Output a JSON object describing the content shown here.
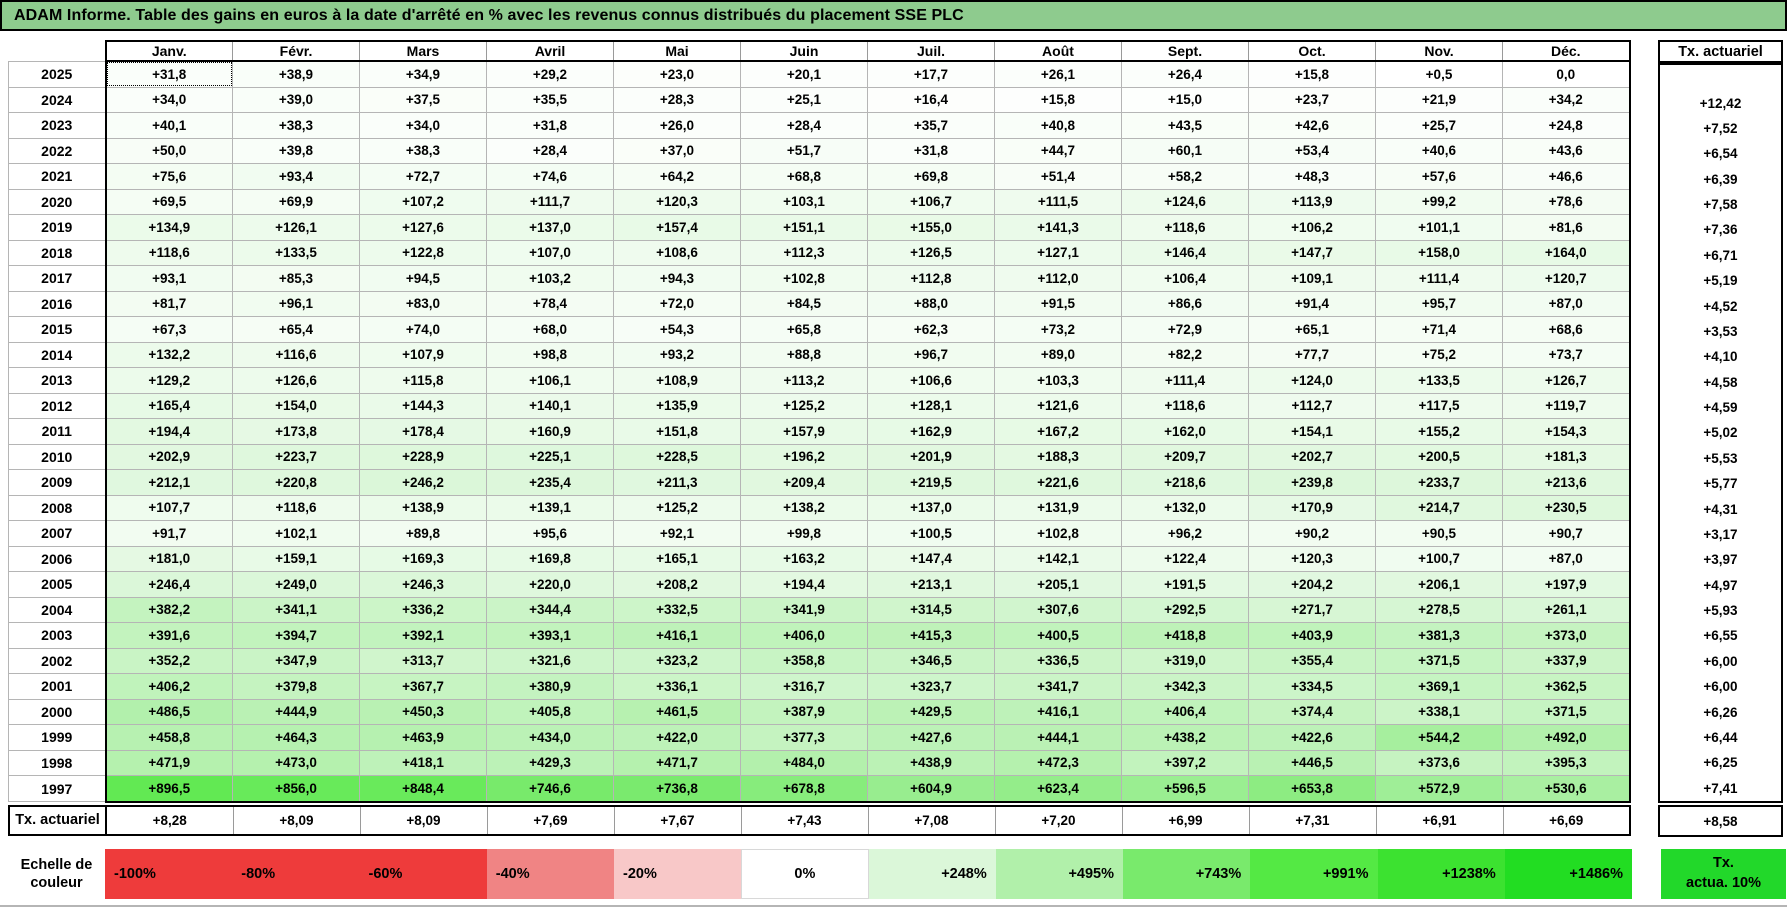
{
  "title": "ADAM Informe. Table des gains en euros à la date d'arrêté en % avec les revenus connus distribués du placement SSE PLC",
  "colors": {
    "title_bg": "#8ecb8e",
    "grid_line": "#b5b5b5",
    "thick_border": "#000000",
    "header_separator": "#9a9a9a"
  },
  "chart_data": {
    "type": "heatmap",
    "title": "ADAM Informe. Table des gains en euros à la date d'arrêté en % avec les revenus connus distribués du placement SSE PLC",
    "columns": [
      "Janv.",
      "Févr.",
      "Mars",
      "Avril",
      "Mai",
      "Juin",
      "Juil.",
      "Août",
      "Sept.",
      "Oct.",
      "Nov.",
      "Déc."
    ],
    "right_column_header": "Tx. actuariel",
    "selected_cell": {
      "year": "2025",
      "column": "Janv."
    },
    "rows": [
      {
        "year": "2025",
        "values": [
          "+31,8",
          "+38,9",
          "+34,9",
          "+29,2",
          "+23,0",
          "+20,1",
          "+17,7",
          "+26,1",
          "+26,4",
          "+15,8",
          "+0,5",
          "0,0"
        ],
        "tx": ""
      },
      {
        "year": "2024",
        "values": [
          "+34,0",
          "+39,0",
          "+37,5",
          "+35,5",
          "+28,3",
          "+25,1",
          "+16,4",
          "+15,8",
          "+15,0",
          "+23,7",
          "+21,9",
          "+34,2"
        ],
        "tx": "+12,42"
      },
      {
        "year": "2023",
        "values": [
          "+40,1",
          "+38,3",
          "+34,0",
          "+31,8",
          "+26,0",
          "+28,4",
          "+35,7",
          "+40,8",
          "+43,5",
          "+42,6",
          "+25,7",
          "+24,8"
        ],
        "tx": "+7,52"
      },
      {
        "year": "2022",
        "values": [
          "+50,0",
          "+39,8",
          "+38,3",
          "+28,4",
          "+37,0",
          "+51,7",
          "+31,8",
          "+44,7",
          "+60,1",
          "+53,4",
          "+40,6",
          "+43,6"
        ],
        "tx": "+6,54"
      },
      {
        "year": "2021",
        "values": [
          "+75,6",
          "+93,4",
          "+72,7",
          "+74,6",
          "+64,2",
          "+68,8",
          "+69,8",
          "+51,4",
          "+58,2",
          "+48,3",
          "+57,6",
          "+46,6"
        ],
        "tx": "+6,39"
      },
      {
        "year": "2020",
        "values": [
          "+69,5",
          "+69,9",
          "+107,2",
          "+111,7",
          "+120,3",
          "+103,1",
          "+106,7",
          "+111,5",
          "+124,6",
          "+113,9",
          "+99,2",
          "+78,6"
        ],
        "tx": "+7,58"
      },
      {
        "year": "2019",
        "values": [
          "+134,9",
          "+126,1",
          "+127,6",
          "+137,0",
          "+157,4",
          "+151,1",
          "+155,0",
          "+141,3",
          "+118,6",
          "+106,2",
          "+101,1",
          "+81,6"
        ],
        "tx": "+7,36"
      },
      {
        "year": "2018",
        "values": [
          "+118,6",
          "+133,5",
          "+122,8",
          "+107,0",
          "+108,6",
          "+112,3",
          "+126,5",
          "+127,1",
          "+146,4",
          "+147,7",
          "+158,0",
          "+164,0"
        ],
        "tx": "+6,71"
      },
      {
        "year": "2017",
        "values": [
          "+93,1",
          "+85,3",
          "+94,5",
          "+103,2",
          "+94,3",
          "+102,8",
          "+112,8",
          "+112,0",
          "+106,4",
          "+109,1",
          "+111,4",
          "+120,7"
        ],
        "tx": "+5,19"
      },
      {
        "year": "2016",
        "values": [
          "+81,7",
          "+96,1",
          "+83,0",
          "+78,4",
          "+72,0",
          "+84,5",
          "+88,0",
          "+91,5",
          "+86,6",
          "+91,4",
          "+95,7",
          "+87,0"
        ],
        "tx": "+4,52"
      },
      {
        "year": "2015",
        "values": [
          "+67,3",
          "+65,4",
          "+74,0",
          "+68,0",
          "+54,3",
          "+65,8",
          "+62,3",
          "+73,2",
          "+72,9",
          "+65,1",
          "+71,4",
          "+68,6"
        ],
        "tx": "+3,53"
      },
      {
        "year": "2014",
        "values": [
          "+132,2",
          "+116,6",
          "+107,9",
          "+98,8",
          "+93,2",
          "+88,8",
          "+96,7",
          "+89,0",
          "+82,2",
          "+77,7",
          "+75,2",
          "+73,7"
        ],
        "tx": "+4,10"
      },
      {
        "year": "2013",
        "values": [
          "+129,2",
          "+126,6",
          "+115,8",
          "+106,1",
          "+108,9",
          "+113,2",
          "+106,6",
          "+103,3",
          "+111,4",
          "+124,0",
          "+133,5",
          "+126,7"
        ],
        "tx": "+4,58"
      },
      {
        "year": "2012",
        "values": [
          "+165,4",
          "+154,0",
          "+144,3",
          "+140,1",
          "+135,9",
          "+125,2",
          "+128,1",
          "+121,6",
          "+118,6",
          "+112,7",
          "+117,5",
          "+119,7"
        ],
        "tx": "+4,59"
      },
      {
        "year": "2011",
        "values": [
          "+194,4",
          "+173,8",
          "+178,4",
          "+160,9",
          "+151,8",
          "+157,9",
          "+162,9",
          "+167,2",
          "+162,0",
          "+154,1",
          "+155,2",
          "+154,3"
        ],
        "tx": "+5,02"
      },
      {
        "year": "2010",
        "values": [
          "+202,9",
          "+223,7",
          "+228,9",
          "+225,1",
          "+228,5",
          "+196,2",
          "+201,9",
          "+188,3",
          "+209,7",
          "+202,7",
          "+200,5",
          "+181,3"
        ],
        "tx": "+5,53"
      },
      {
        "year": "2009",
        "values": [
          "+212,1",
          "+220,8",
          "+246,2",
          "+235,4",
          "+211,3",
          "+209,4",
          "+219,5",
          "+221,6",
          "+218,6",
          "+239,8",
          "+233,7",
          "+213,6"
        ],
        "tx": "+5,77"
      },
      {
        "year": "2008",
        "values": [
          "+107,7",
          "+118,6",
          "+138,9",
          "+139,1",
          "+125,2",
          "+138,2",
          "+137,0",
          "+131,9",
          "+132,0",
          "+170,9",
          "+214,7",
          "+230,5"
        ],
        "tx": "+4,31"
      },
      {
        "year": "2007",
        "values": [
          "+91,7",
          "+102,1",
          "+89,8",
          "+95,6",
          "+92,1",
          "+99,8",
          "+100,5",
          "+102,8",
          "+96,2",
          "+90,2",
          "+90,5",
          "+90,7"
        ],
        "tx": "+3,17"
      },
      {
        "year": "2006",
        "values": [
          "+181,0",
          "+159,1",
          "+169,3",
          "+169,8",
          "+165,1",
          "+163,2",
          "+147,4",
          "+142,1",
          "+122,4",
          "+120,3",
          "+100,7",
          "+87,0"
        ],
        "tx": "+3,97"
      },
      {
        "year": "2005",
        "values": [
          "+246,4",
          "+249,0",
          "+246,3",
          "+220,0",
          "+208,2",
          "+194,4",
          "+213,1",
          "+205,1",
          "+191,5",
          "+204,2",
          "+206,1",
          "+197,9"
        ],
        "tx": "+4,97"
      },
      {
        "year": "2004",
        "values": [
          "+382,2",
          "+341,1",
          "+336,2",
          "+344,4",
          "+332,5",
          "+341,9",
          "+314,5",
          "+307,6",
          "+292,5",
          "+271,7",
          "+278,5",
          "+261,1"
        ],
        "tx": "+5,93"
      },
      {
        "year": "2003",
        "values": [
          "+391,6",
          "+394,7",
          "+392,1",
          "+393,1",
          "+416,1",
          "+406,0",
          "+415,3",
          "+400,5",
          "+418,8",
          "+403,9",
          "+381,3",
          "+373,0"
        ],
        "tx": "+6,55"
      },
      {
        "year": "2002",
        "values": [
          "+352,2",
          "+347,9",
          "+313,7",
          "+321,6",
          "+323,2",
          "+358,8",
          "+346,5",
          "+336,5",
          "+319,0",
          "+355,4",
          "+371,5",
          "+337,9"
        ],
        "tx": "+6,00"
      },
      {
        "year": "2001",
        "values": [
          "+406,2",
          "+379,8",
          "+367,7",
          "+380,9",
          "+336,1",
          "+316,7",
          "+323,7",
          "+341,7",
          "+342,3",
          "+334,5",
          "+369,1",
          "+362,5"
        ],
        "tx": "+6,00"
      },
      {
        "year": "2000",
        "values": [
          "+486,5",
          "+444,9",
          "+450,3",
          "+405,8",
          "+461,5",
          "+387,9",
          "+429,5",
          "+416,1",
          "+406,4",
          "+374,4",
          "+338,1",
          "+371,5"
        ],
        "tx": "+6,26"
      },
      {
        "year": "1999",
        "values": [
          "+458,8",
          "+464,3",
          "+463,9",
          "+434,0",
          "+422,0",
          "+377,3",
          "+427,6",
          "+444,1",
          "+438,2",
          "+422,6",
          "+544,2",
          "+492,0"
        ],
        "tx": "+6,44"
      },
      {
        "year": "1998",
        "values": [
          "+471,9",
          "+473,0",
          "+418,1",
          "+429,3",
          "+471,7",
          "+484,0",
          "+438,9",
          "+472,3",
          "+397,2",
          "+446,5",
          "+373,6",
          "+395,3"
        ],
        "tx": "+6,25"
      },
      {
        "year": "1997",
        "values": [
          "+896,5",
          "+856,0",
          "+848,4",
          "+746,6",
          "+736,8",
          "+678,8",
          "+604,9",
          "+623,4",
          "+596,5",
          "+653,8",
          "+572,9",
          "+530,6"
        ],
        "tx": "+7,41"
      }
    ],
    "footer": {
      "label": "Tx. actuariel",
      "values": [
        "+8,28",
        "+8,09",
        "+8,09",
        "+7,69",
        "+7,67",
        "+7,43",
        "+7,08",
        "+7,20",
        "+6,99",
        "+7,31",
        "+6,91",
        "+6,69"
      ],
      "tx": "+8,58"
    },
    "value_color_stops": [
      [
        0,
        "#ffffff"
      ],
      [
        248,
        "#dbf7d9"
      ],
      [
        495,
        "#b1f0aa"
      ],
      [
        743,
        "#79ea6c"
      ],
      [
        991,
        "#54e944"
      ],
      [
        1238,
        "#3ce230"
      ],
      [
        1486,
        "#22dd22"
      ]
    ],
    "color_scale": {
      "label_line1": "Echelle de",
      "label_line2": "couleur",
      "entries": [
        {
          "label": "-100%",
          "color": "#ee3b3b",
          "align": "left"
        },
        {
          "label": "-80%",
          "color": "#ee3b3b",
          "align": "left"
        },
        {
          "label": "-60%",
          "color": "#ee3b3b",
          "align": "left"
        },
        {
          "label": "-40%",
          "color": "#f08484",
          "align": "left"
        },
        {
          "label": "-20%",
          "color": "#f8c8c8",
          "align": "left"
        },
        {
          "label": "0%",
          "color": "#ffffff",
          "align": "center"
        },
        {
          "label": "+248%",
          "color": "#dbf7d9",
          "align": "right"
        },
        {
          "label": "+495%",
          "color": "#b1f0aa",
          "align": "right"
        },
        {
          "label": "+743%",
          "color": "#79ea6c",
          "align": "right"
        },
        {
          "label": "+991%",
          "color": "#54e944",
          "align": "right"
        },
        {
          "label": "+1238%",
          "color": "#3ce230",
          "align": "right"
        },
        {
          "label": "+1486%",
          "color": "#22dd22",
          "align": "right"
        }
      ],
      "right_box": {
        "line1": "Tx.",
        "line2": "actua. 10%",
        "color": "#22d82a"
      }
    }
  }
}
